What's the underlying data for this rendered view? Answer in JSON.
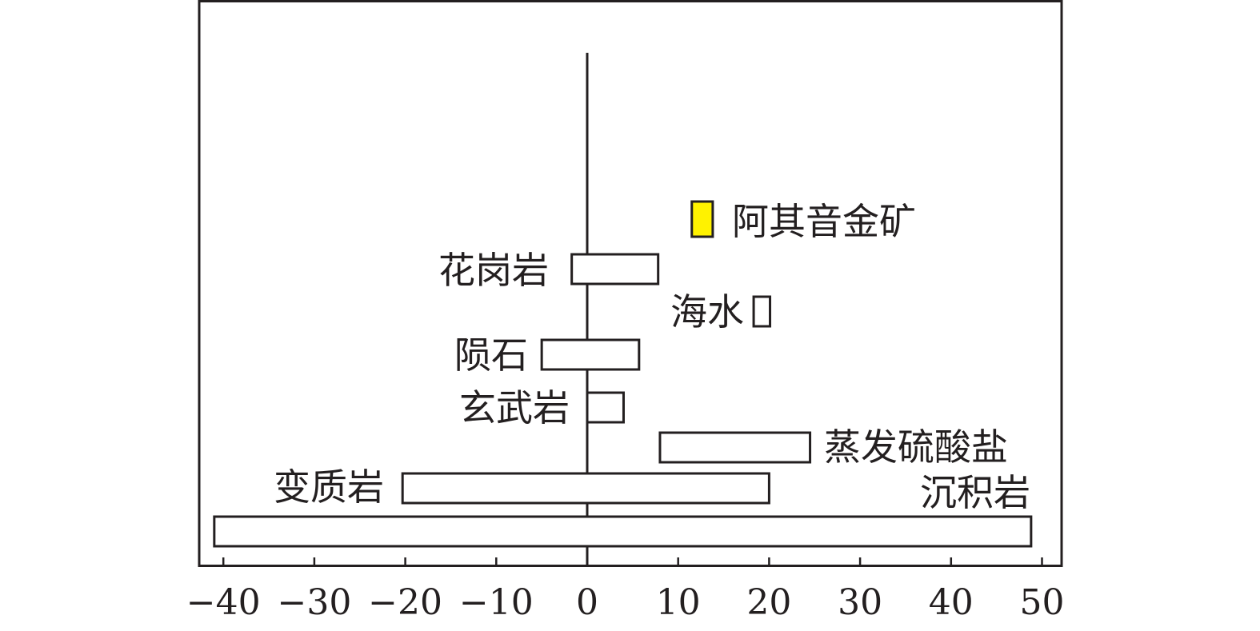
{
  "chart_data": {
    "type": "bar",
    "orientation": "horizontal-range",
    "title": "",
    "xlabel": "",
    "ylabel": "",
    "xlim": [
      -42,
      52.5
    ],
    "xticks": [
      -40,
      -30,
      -20,
      -10,
      0,
      10,
      20,
      30,
      40,
      50
    ],
    "xtick_labels": [
      "−40",
      "−30",
      "−20",
      "−10",
      "0",
      "10",
      "20",
      "30",
      "40",
      "50"
    ],
    "grid": false,
    "bars": [
      {
        "label": "阿其音金矿",
        "min": 11.5,
        "max": 13.8,
        "fill": "#fff200",
        "label_side": "right"
      },
      {
        "label": "花岗岩",
        "min": -1.7,
        "max": 7.8,
        "fill": "#ffffff",
        "label_side": "left"
      },
      {
        "label": "海水",
        "min": 18.3,
        "max": 20.1,
        "fill": "#ffffff",
        "label_side": "left"
      },
      {
        "label": "陨石",
        "min": -5.0,
        "max": 5.7,
        "fill": "#ffffff",
        "label_side": "left"
      },
      {
        "label": "玄武岩",
        "min": 0,
        "max": 4.0,
        "fill": "#ffffff",
        "label_side": "left"
      },
      {
        "label": "蒸发硫酸盐",
        "min": 8.0,
        "max": 24.5,
        "fill": "#ffffff",
        "label_side": "right"
      },
      {
        "label": "变质岩",
        "min": -20.3,
        "max": 20.0,
        "fill": "#ffffff",
        "label_side": "left"
      },
      {
        "label": "沉积岩",
        "min": -41.0,
        "max": 48.8,
        "fill": "#ffffff",
        "label_side": "above-right"
      }
    ]
  }
}
